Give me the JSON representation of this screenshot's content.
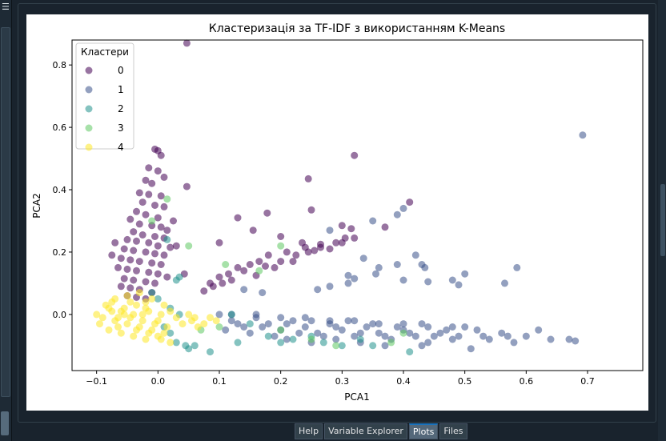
{
  "window": {
    "menu_icon": "hamburger-icon"
  },
  "tabs": [
    {
      "label": "Help",
      "active": false
    },
    {
      "label": "Variable Explorer",
      "active": false
    },
    {
      "label": "Plots",
      "active": true
    },
    {
      "label": "Files",
      "active": false
    }
  ],
  "chart_data": {
    "type": "scatter",
    "title": "Кластеризація за TF-IDF з використанням K-Means",
    "xlabel": "PCA1",
    "ylabel": "PCA2",
    "xlim": [
      -0.14,
      0.79
    ],
    "ylim": [
      -0.18,
      0.88
    ],
    "xticks": [
      -0.1,
      0.0,
      0.1,
      0.2,
      0.3,
      0.4,
      0.5,
      0.6,
      0.7
    ],
    "xtick_labels": [
      "−0.1",
      "0.0",
      "0.1",
      "0.2",
      "0.3",
      "0.4",
      "0.5",
      "0.6",
      "0.7"
    ],
    "yticks": [
      0.0,
      0.2,
      0.4,
      0.6,
      0.8
    ],
    "ytick_labels": [
      "0.0",
      "0.2",
      "0.4",
      "0.6",
      "0.8"
    ],
    "legend_title": "Кластери",
    "legend_placement": "top-left",
    "grid": false,
    "series": [
      {
        "name": "0",
        "color": "#440154",
        "points": [
          [
            0.047,
            0.87
          ],
          [
            -0.005,
            0.53
          ],
          [
            0.0,
            0.525
          ],
          [
            0.005,
            0.51
          ],
          [
            -0.015,
            0.47
          ],
          [
            0.0,
            0.46
          ],
          [
            -0.02,
            0.43
          ],
          [
            0.01,
            0.44
          ],
          [
            -0.01,
            0.42
          ],
          [
            0.047,
            0.41
          ],
          [
            -0.03,
            0.39
          ],
          [
            -0.015,
            0.385
          ],
          [
            0.005,
            0.38
          ],
          [
            -0.025,
            0.36
          ],
          [
            -0.005,
            0.35
          ],
          [
            0.01,
            0.345
          ],
          [
            -0.035,
            0.33
          ],
          [
            -0.02,
            0.32
          ],
          [
            0.0,
            0.31
          ],
          [
            -0.045,
            0.305
          ],
          [
            -0.03,
            0.29
          ],
          [
            -0.01,
            0.285
          ],
          [
            0.005,
            0.28
          ],
          [
            0.015,
            0.27
          ],
          [
            -0.04,
            0.265
          ],
          [
            -0.025,
            0.255
          ],
          [
            -0.005,
            0.25
          ],
          [
            0.01,
            0.245
          ],
          [
            -0.05,
            0.24
          ],
          [
            -0.035,
            0.235
          ],
          [
            -0.015,
            0.23
          ],
          [
            0.0,
            0.22
          ],
          [
            0.02,
            0.215
          ],
          [
            -0.055,
            0.21
          ],
          [
            -0.04,
            0.205
          ],
          [
            -0.02,
            0.2
          ],
          [
            -0.005,
            0.195
          ],
          [
            0.01,
            0.19
          ],
          [
            -0.06,
            0.18
          ],
          [
            -0.045,
            0.175
          ],
          [
            -0.03,
            0.17
          ],
          [
            -0.01,
            0.165
          ],
          [
            0.005,
            0.16
          ],
          [
            -0.065,
            0.15
          ],
          [
            -0.05,
            0.145
          ],
          [
            -0.035,
            0.14
          ],
          [
            -0.015,
            0.135
          ],
          [
            0.0,
            0.13
          ],
          [
            0.015,
            0.12
          ],
          [
            -0.055,
            0.115
          ],
          [
            -0.04,
            0.11
          ],
          [
            -0.02,
            0.105
          ],
          [
            -0.005,
            0.1
          ],
          [
            -0.06,
            0.09
          ],
          [
            -0.045,
            0.085
          ],
          [
            -0.03,
            0.08
          ],
          [
            -0.01,
            0.07
          ],
          [
            -0.05,
            0.06
          ],
          [
            -0.035,
            0.055
          ],
          [
            -0.02,
            0.05
          ],
          [
            0.043,
            0.13
          ],
          [
            0.03,
            0.22
          ],
          [
            -0.07,
            0.23
          ],
          [
            -0.075,
            0.19
          ],
          [
            0.025,
            0.3
          ],
          [
            0.32,
            0.51
          ],
          [
            0.245,
            0.435
          ],
          [
            0.41,
            0.36
          ],
          [
            0.178,
            0.325
          ],
          [
            0.25,
            0.335
          ],
          [
            0.3,
            0.285
          ],
          [
            0.315,
            0.275
          ],
          [
            0.13,
            0.31
          ],
          [
            0.1,
            0.23
          ],
          [
            0.155,
            0.27
          ],
          [
            0.2,
            0.25
          ],
          [
            0.235,
            0.23
          ],
          [
            0.265,
            0.225
          ],
          [
            0.28,
            0.21
          ],
          [
            0.21,
            0.2
          ],
          [
            0.18,
            0.19
          ],
          [
            0.165,
            0.17
          ],
          [
            0.15,
            0.16
          ],
          [
            0.13,
            0.15
          ],
          [
            0.115,
            0.13
          ],
          [
            0.1,
            0.12
          ],
          [
            0.085,
            0.1
          ],
          [
            0.14,
            0.14
          ],
          [
            0.175,
            0.155
          ],
          [
            0.2,
            0.17
          ],
          [
            0.225,
            0.19
          ],
          [
            0.245,
            0.2
          ],
          [
            0.265,
            0.215
          ],
          [
            0.12,
            0.11
          ],
          [
            0.105,
            0.1
          ],
          [
            0.16,
            0.125
          ],
          [
            0.19,
            0.15
          ],
          [
            0.22,
            0.17
          ],
          [
            0.255,
            0.205
          ],
          [
            0.29,
            0.23
          ],
          [
            0.305,
            0.245
          ],
          [
            0.075,
            0.075
          ],
          [
            0.09,
            0.09
          ],
          [
            0.3,
            0.23
          ],
          [
            0.32,
            0.245
          ],
          [
            0.37,
            0.28
          ],
          [
            0.24,
            0.215
          ]
        ]
      },
      {
        "name": "1",
        "color": "#3b528b",
        "points": [
          [
            0.692,
            0.575
          ],
          [
            0.39,
            0.32
          ],
          [
            0.4,
            0.34
          ],
          [
            0.35,
            0.3
          ],
          [
            0.28,
            0.27
          ],
          [
            0.42,
            0.19
          ],
          [
            0.39,
            0.16
          ],
          [
            0.36,
            0.15
          ],
          [
            0.355,
            0.13
          ],
          [
            0.31,
            0.125
          ],
          [
            0.335,
            0.18
          ],
          [
            0.32,
            0.115
          ],
          [
            0.4,
            0.11
          ],
          [
            0.43,
            0.16
          ],
          [
            0.435,
            0.15
          ],
          [
            0.48,
            0.11
          ],
          [
            0.5,
            0.13
          ],
          [
            0.585,
            0.15
          ],
          [
            0.565,
            0.1
          ],
          [
            0.49,
            0.095
          ],
          [
            0.44,
            0.105
          ],
          [
            0.31,
            0.1
          ],
          [
            0.28,
            0.09
          ],
          [
            0.26,
            0.08
          ],
          [
            0.17,
            0.07
          ],
          [
            0.14,
            0.08
          ],
          [
            0.1,
            0.0
          ],
          [
            0.12,
            -0.02
          ],
          [
            0.14,
            -0.04
          ],
          [
            0.16,
            -0.01
          ],
          [
            0.18,
            -0.03
          ],
          [
            0.2,
            -0.05
          ],
          [
            0.22,
            -0.02
          ],
          [
            0.24,
            -0.04
          ],
          [
            0.26,
            -0.06
          ],
          [
            0.28,
            -0.03
          ],
          [
            0.3,
            -0.05
          ],
          [
            0.32,
            -0.07
          ],
          [
            0.34,
            -0.04
          ],
          [
            0.36,
            -0.06
          ],
          [
            0.38,
            -0.08
          ],
          [
            0.4,
            -0.05
          ],
          [
            0.42,
            -0.07
          ],
          [
            0.44,
            -0.09
          ],
          [
            0.46,
            -0.06
          ],
          [
            0.48,
            -0.08
          ],
          [
            0.5,
            -0.04
          ],
          [
            0.52,
            -0.05
          ],
          [
            0.54,
            -0.08
          ],
          [
            0.56,
            -0.06
          ],
          [
            0.58,
            -0.09
          ],
          [
            0.6,
            -0.07
          ],
          [
            0.62,
            -0.05
          ],
          [
            0.64,
            -0.08
          ],
          [
            0.67,
            -0.08
          ],
          [
            0.68,
            -0.085
          ],
          [
            0.51,
            -0.11
          ],
          [
            0.43,
            -0.1
          ],
          [
            0.37,
            -0.1
          ],
          [
            0.29,
            -0.08
          ],
          [
            0.11,
            -0.05
          ],
          [
            0.13,
            -0.03
          ],
          [
            0.15,
            -0.06
          ],
          [
            0.17,
            -0.04
          ],
          [
            0.19,
            -0.07
          ],
          [
            0.21,
            -0.03
          ],
          [
            0.23,
            -0.06
          ],
          [
            0.25,
            -0.02
          ],
          [
            0.27,
            -0.07
          ],
          [
            0.29,
            -0.04
          ],
          [
            0.31,
            -0.02
          ],
          [
            0.33,
            -0.06
          ],
          [
            0.35,
            -0.03
          ],
          [
            0.37,
            -0.07
          ],
          [
            0.39,
            -0.04
          ],
          [
            0.41,
            -0.06
          ],
          [
            0.43,
            -0.03
          ],
          [
            0.45,
            -0.07
          ],
          [
            0.47,
            -0.05
          ],
          [
            0.49,
            -0.07
          ],
          [
            0.12,
            0.0
          ],
          [
            0.16,
            0.0
          ],
          [
            0.2,
            -0.01
          ],
          [
            0.24,
            -0.01
          ],
          [
            0.28,
            -0.02
          ],
          [
            0.32,
            -0.02
          ],
          [
            0.36,
            -0.03
          ],
          [
            0.4,
            -0.03
          ],
          [
            0.44,
            -0.04
          ],
          [
            0.48,
            -0.04
          ],
          [
            0.53,
            -0.07
          ],
          [
            0.57,
            -0.07
          ],
          [
            0.21,
            -0.08
          ],
          [
            0.25,
            -0.09
          ],
          [
            0.33,
            -0.09
          ]
        ]
      },
      {
        "name": "2",
        "color": "#21918c",
        "points": [
          [
            0.41,
            -0.12
          ],
          [
            0.02,
            -0.06
          ],
          [
            0.03,
            -0.09
          ],
          [
            0.045,
            -0.1
          ],
          [
            0.05,
            -0.11
          ],
          [
            0.06,
            -0.1
          ],
          [
            0.085,
            -0.12
          ],
          [
            0.03,
            0.11
          ],
          [
            0.035,
            0.12
          ],
          [
            0.015,
            0.24
          ],
          [
            0.12,
            0.0
          ],
          [
            0.15,
            -0.03
          ],
          [
            0.18,
            -0.07
          ],
          [
            0.2,
            -0.09
          ],
          [
            0.22,
            -0.08
          ],
          [
            0.25,
            -0.07
          ],
          [
            0.27,
            -0.09
          ],
          [
            0.3,
            -0.1
          ],
          [
            0.33,
            -0.08
          ],
          [
            0.35,
            -0.1
          ],
          [
            0.0,
            0.05
          ],
          [
            -0.01,
            0.07
          ],
          [
            0.02,
            0.02
          ],
          [
            0.01,
            -0.04
          ],
          [
            0.035,
            0.0
          ],
          [
            0.13,
            -0.09
          ]
        ]
      },
      {
        "name": "3",
        "color": "#5ec962",
        "points": [
          [
            0.015,
            0.37
          ],
          [
            0.11,
            0.16
          ],
          [
            0.2,
            0.22
          ],
          [
            0.165,
            0.14
          ],
          [
            0.05,
            0.22
          ],
          [
            -0.01,
            0.3
          ],
          [
            0.07,
            -0.05
          ],
          [
            0.1,
            -0.04
          ],
          [
            0.2,
            -0.05
          ],
          [
            0.25,
            -0.08
          ],
          [
            0.38,
            -0.09
          ],
          [
            0.4,
            -0.06
          ],
          [
            0.29,
            -0.1
          ]
        ]
      },
      {
        "name": "4",
        "color": "#fde725",
        "points": [
          [
            -0.1,
            0.0
          ],
          [
            -0.09,
            -0.01
          ],
          [
            -0.08,
            0.02
          ],
          [
            -0.07,
            -0.02
          ],
          [
            -0.06,
            0.01
          ],
          [
            -0.05,
            -0.03
          ],
          [
            -0.04,
            0.0
          ],
          [
            -0.03,
            -0.04
          ],
          [
            -0.02,
            0.02
          ],
          [
            -0.01,
            -0.05
          ],
          [
            0.0,
            -0.02
          ],
          [
            0.01,
            -0.06
          ],
          [
            -0.085,
            0.03
          ],
          [
            -0.075,
            0.01
          ],
          [
            -0.065,
            -0.04
          ],
          [
            -0.055,
            0.02
          ],
          [
            -0.045,
            -0.01
          ],
          [
            -0.035,
            0.03
          ],
          [
            -0.025,
            -0.02
          ],
          [
            -0.015,
            0.01
          ],
          [
            -0.005,
            -0.03
          ],
          [
            0.005,
            0.0
          ],
          [
            0.015,
            -0.04
          ],
          [
            -0.07,
            0.05
          ],
          [
            -0.05,
            0.06
          ],
          [
            -0.03,
            0.07
          ],
          [
            -0.01,
            0.05
          ],
          [
            -0.06,
            -0.06
          ],
          [
            -0.04,
            -0.07
          ],
          [
            -0.02,
            -0.08
          ],
          [
            0.0,
            -0.07
          ],
          [
            0.02,
            -0.09
          ],
          [
            -0.08,
            -0.05
          ],
          [
            -0.095,
            -0.03
          ],
          [
            -0.075,
            0.04
          ],
          [
            -0.045,
            0.04
          ],
          [
            -0.02,
            0.04
          ],
          [
            0.01,
            0.03
          ],
          [
            0.03,
            -0.01
          ],
          [
            0.04,
            -0.03
          ],
          [
            0.055,
            -0.02
          ],
          [
            0.065,
            -0.04
          ],
          [
            0.075,
            -0.03
          ],
          [
            0.085,
            -0.01
          ],
          [
            0.095,
            -0.02
          ],
          [
            0.05,
            0.0
          ],
          [
            0.06,
            -0.01
          ],
          [
            0.02,
            0.01
          ],
          [
            -0.065,
            -0.01
          ],
          [
            -0.035,
            -0.05
          ],
          [
            -0.015,
            -0.06
          ],
          [
            0.005,
            -0.08
          ],
          [
            -0.055,
            0.0
          ],
          [
            -0.025,
            0.0
          ]
        ]
      }
    ]
  }
}
